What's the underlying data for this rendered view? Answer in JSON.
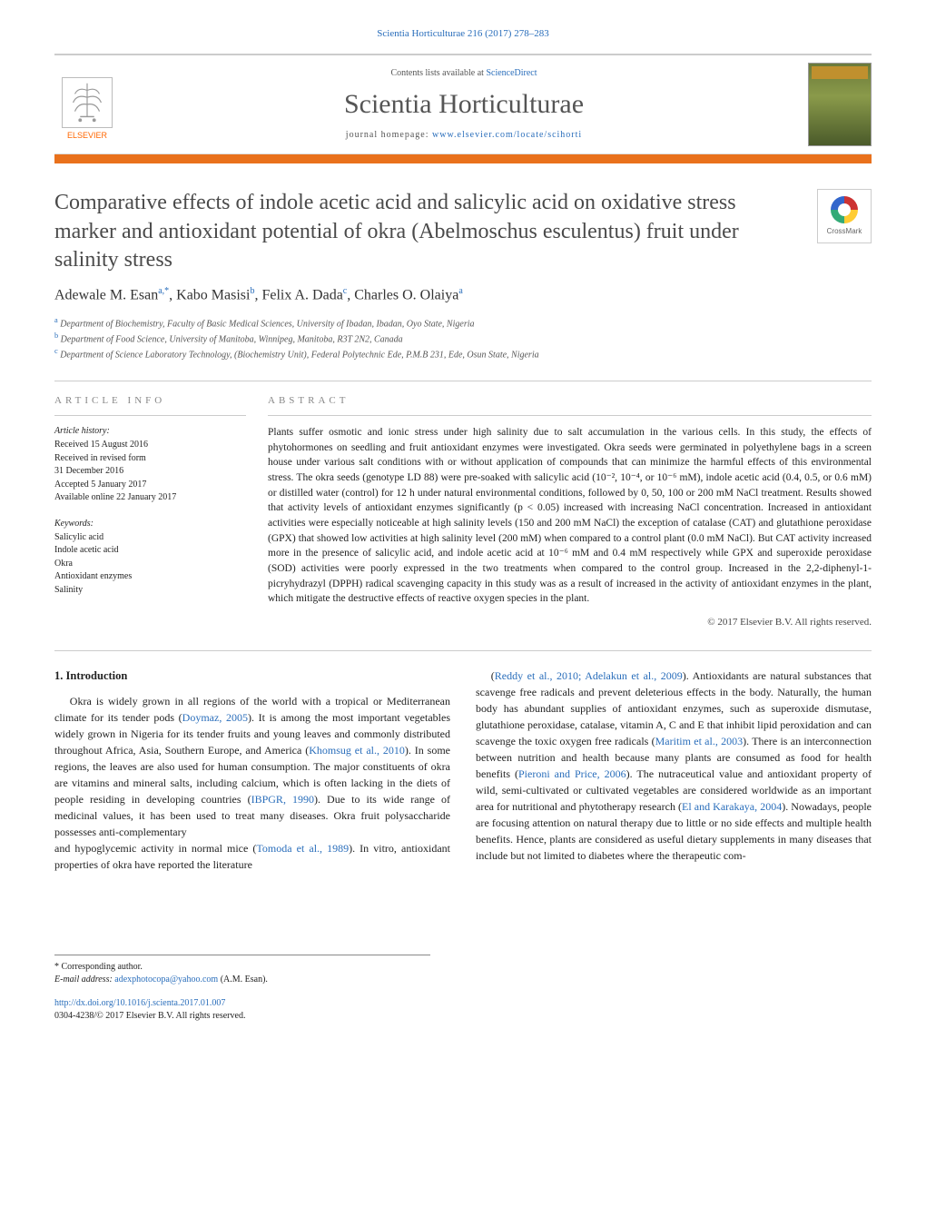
{
  "header": {
    "citation": "Scientia Horticulturae 216 (2017) 278–283",
    "contents_prefix": "Contents lists available at ",
    "contents_link": "ScienceDirect",
    "journal_name": "Scientia Horticulturae",
    "homepage_prefix": "journal homepage: ",
    "homepage_url": "www.elsevier.com/locate/scihorti",
    "publisher_name": "ELSEVIER",
    "crossmark_label": "CrossMark"
  },
  "article": {
    "title": "Comparative effects of indole acetic acid and salicylic acid on oxidative stress marker and antioxidant potential of okra (Abelmoschus esculentus) fruit under salinity stress",
    "authors_html": "Adewale M. Esan<sup>a,*</sup>, Kabo Masisi<sup>b</sup>, Felix A. Dada<sup>c</sup>, Charles O. Olaiya<sup>a</sup>",
    "affiliations": [
      {
        "sup": "a",
        "text": "Department of Biochemistry, Faculty of Basic Medical Sciences, University of Ibadan, Ibadan, Oyo State, Nigeria"
      },
      {
        "sup": "b",
        "text": "Department of Food Science, University of Manitoba, Winnipeg, Manitoba, R3T 2N2, Canada"
      },
      {
        "sup": "c",
        "text": "Department of Science Laboratory Technology, (Biochemistry Unit), Federal Polytechnic Ede, P.M.B 231, Ede, Osun State, Nigeria"
      }
    ]
  },
  "info": {
    "label": "ARTICLE INFO",
    "history_label": "Article history:",
    "history": [
      "Received 15 August 2016",
      "Received in revised form",
      "31 December 2016",
      "Accepted 5 January 2017",
      "Available online 22 January 2017"
    ],
    "keywords_label": "Keywords:",
    "keywords": [
      "Salicylic acid",
      "Indole acetic acid",
      "Okra",
      "Antioxidant enzymes",
      "Salinity"
    ]
  },
  "abstract": {
    "label": "ABSTRACT",
    "text": "Plants suffer osmotic and ionic stress under high salinity due to salt accumulation in the various cells. In this study, the effects of phytohormones on seedling and fruit antioxidant enzymes were investigated. Okra seeds were germinated in polyethylene bags in a screen house under various salt conditions with or without application of compounds that can minimize the harmful effects of this environmental stress. The okra seeds (genotype LD 88) were pre-soaked with salicylic acid (10⁻², 10⁻⁴, or 10⁻⁶ mM), indole acetic acid (0.4, 0.5, or 0.6 mM) or distilled water (control) for 12 h under natural environmental conditions, followed by 0, 50, 100 or 200 mM NaCl treatment. Results showed that activity levels of antioxidant enzymes significantly (p < 0.05) increased with increasing NaCl concentration. Increased in antioxidant activities were especially noticeable at high salinity levels (150 and 200 mM NaCl) the exception of catalase (CAT) and glutathione peroxidase (GPX) that showed low activities at high salinity level (200 mM) when compared to a control plant (0.0 mM NaCl). But CAT activity increased more in the presence of salicylic acid, and indole acetic acid at 10⁻⁶ mM and 0.4 mM respectively while GPX and superoxide peroxidase (SOD) activities were poorly expressed in the two treatments when compared to the control group. Increased in the 2,2-diphenyl-1-picryhydrazyl (DPPH) radical scavenging capacity in this study was as a result of increased in the activity of antioxidant enzymes in the plant, which mitigate the destructive effects of reactive oxygen species in the plant.",
    "copyright": "© 2017 Elsevier B.V. All rights reserved."
  },
  "body": {
    "intro_heading": "1. Introduction",
    "para1_a": "Okra is widely grown in all regions of the world with a tropical or Mediterranean climate for its tender pods (",
    "para1_ref1": "Doymaz, 2005",
    "para1_b": "). It is among the most important vegetables widely grown in Nigeria for its tender fruits and young leaves and commonly distributed throughout Africa, Asia, Southern Europe, and America (",
    "para1_ref2": "Khomsug et al., 2010",
    "para1_c": "). In some regions, the leaves are also used for human consumption. The major constituents of okra are vitamins and mineral salts, including calcium, which is often lacking in the diets of people residing in developing countries (",
    "para1_ref3": "IBPGR, 1990",
    "para1_d": "). Due to its wide range of medicinal values, it has been used to treat many diseases. Okra fruit polysaccharide possesses anti-complementary",
    "para2_a": "and hypoglycemic activity in normal mice (",
    "para2_ref1": "Tomoda et al., 1989",
    "para2_b": "). In vitro, antioxidant properties of okra have reported the literature",
    "para3_a": "(",
    "para3_ref1": "Reddy et al., 2010; Adelakun et al., 2009",
    "para3_b": "). Antioxidants are natural substances that scavenge free radicals and prevent deleterious effects in the body. Naturally, the human body has abundant supplies of antioxidant enzymes, such as superoxide dismutase, glutathione peroxidase, catalase, vitamin A, C and E that inhibit lipid peroxidation and can scavenge the toxic oxygen free radicals (",
    "para3_ref2": "Maritim et al., 2003",
    "para3_c": "). There is an interconnection between nutrition and health because many plants are consumed as food for health benefits (",
    "para3_ref3": "Pieroni and Price, 2006",
    "para3_d": "). The nutraceutical value and antioxidant property of wild, semi-cultivated or cultivated vegetables are considered worldwide as an important area for nutritional and phytotherapy research (",
    "para3_ref4": "El and Karakaya, 2004",
    "para3_e": "). Nowadays, people are focusing attention on natural therapy due to little or no side effects and multiple health benefits. Hence, plants are considered as useful dietary supplements in many diseases that include but not limited to diabetes where the therapeutic com-"
  },
  "footer": {
    "corr_label": "* Corresponding author.",
    "email_label": "E-mail address: ",
    "email": "adexphotocopa@yahoo.com",
    "email_suffix": " (A.M. Esan).",
    "doi_url": "http://dx.doi.org/10.1016/j.scienta.2017.01.007",
    "issn_line": "0304-4238/© 2017 Elsevier B.V. All rights reserved."
  },
  "colors": {
    "link": "#2a6ebb",
    "accent_bar": "#e9711c",
    "title_gray": "#4a4a4a",
    "text": "#222222",
    "muted": "#555555"
  }
}
